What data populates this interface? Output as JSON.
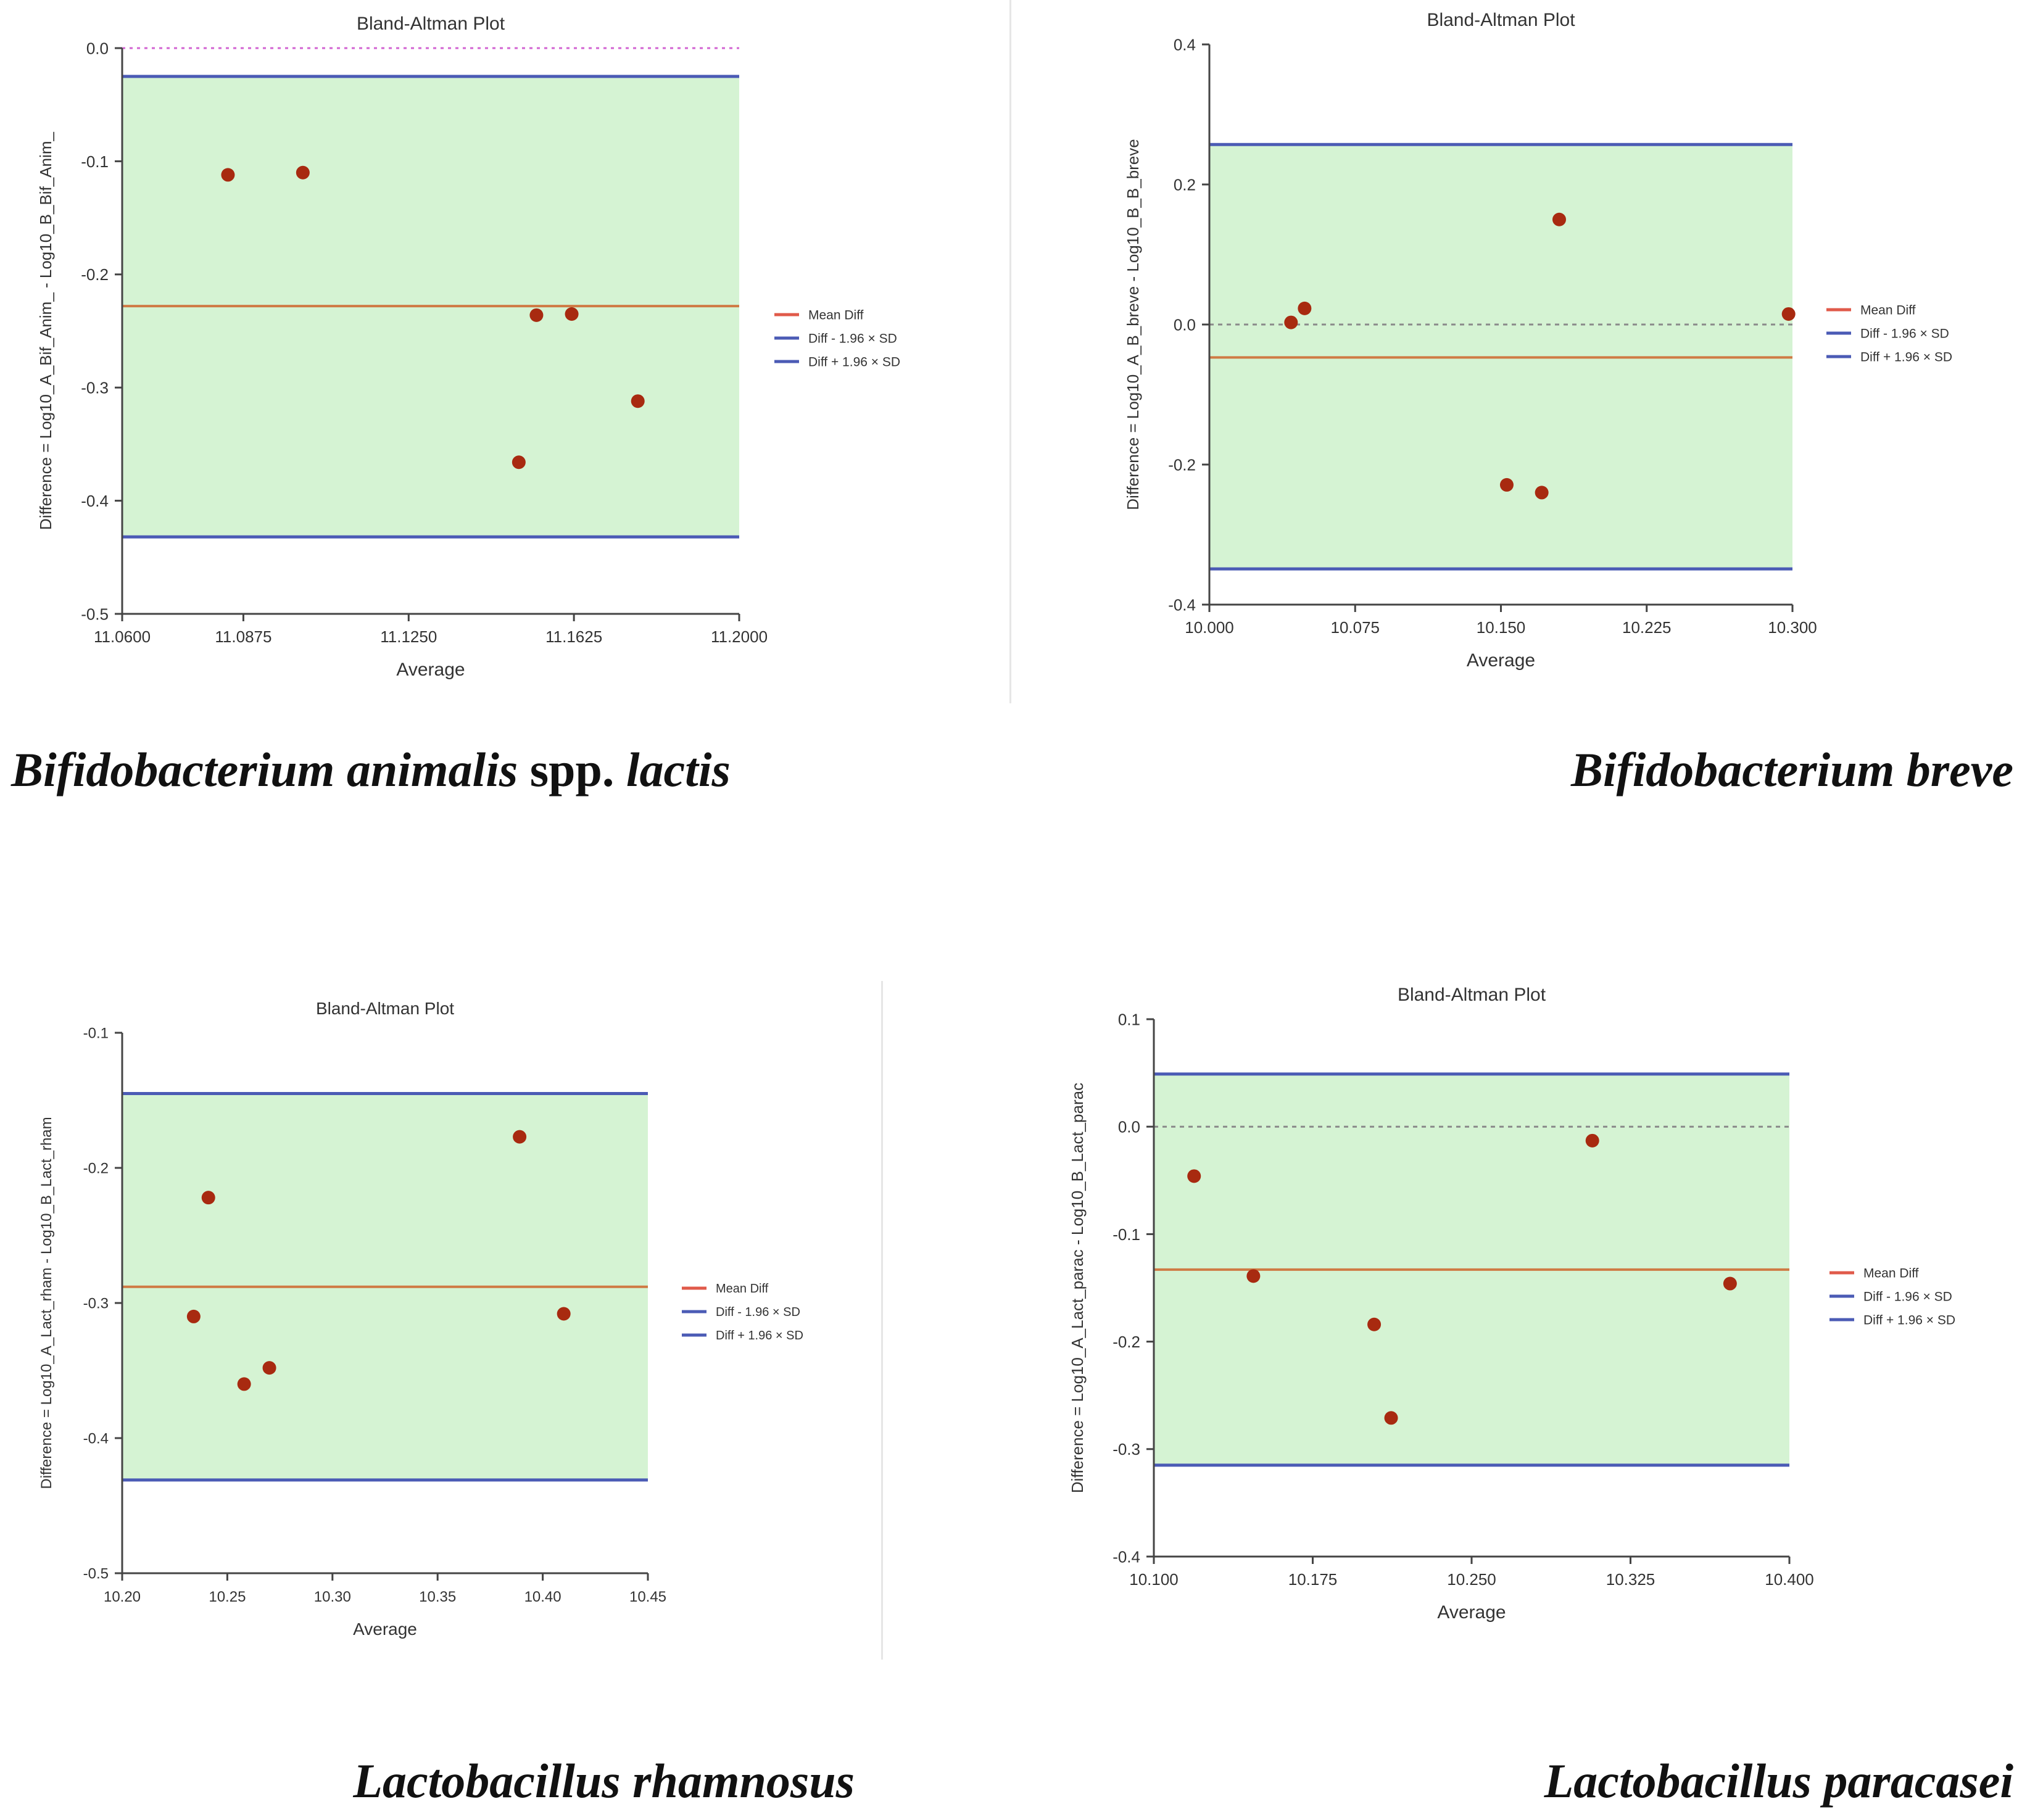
{
  "chart_data": [
    {
      "type": "scatter",
      "title": "Bland-Altman Plot",
      "xlabel": "Average",
      "ylabel": "Difference = Log10_A_Bif_Anim_ - Log10_B_Bif_Anim_",
      "xlim": [
        11.06,
        11.2
      ],
      "ylim": [
        -0.5,
        0.0
      ],
      "xticks": [
        "11.0600",
        "11.0875",
        "11.1250",
        "11.1625",
        "11.2000"
      ],
      "xtick_values": [
        11.06,
        11.0875,
        11.125,
        11.1625,
        11.2
      ],
      "yticks": [
        "0.0",
        "-0.1",
        "-0.2",
        "-0.3",
        "-0.4",
        "-0.5"
      ],
      "ytick_values": [
        0.0,
        -0.1,
        -0.2,
        -0.3,
        -0.4,
        -0.5
      ],
      "zero_line": "pink",
      "mean_diff": -0.228,
      "lower_loa": -0.432,
      "upper_loa": -0.025,
      "points": [
        [
          11.084,
          -0.112
        ],
        [
          11.101,
          -0.11
        ],
        [
          11.154,
          -0.236
        ],
        [
          11.162,
          -0.235
        ],
        [
          11.15,
          -0.366
        ],
        [
          11.177,
          -0.312
        ]
      ],
      "legend": [
        "Mean Diff",
        "Diff - 1.96 × SD",
        "Diff + 1.96 × SD"
      ],
      "legend_position": "right",
      "caption_italic": "Bifidobacterium animalis",
      "caption_normal": " spp. ",
      "caption_italic2": "lactis"
    },
    {
      "type": "scatter",
      "title": "Bland-Altman Plot",
      "xlabel": "Average",
      "ylabel": "Difference = Log10_A_B_breve - Log10_B_B_breve",
      "xlim": [
        10.0,
        10.3
      ],
      "ylim": [
        -0.4,
        0.4
      ],
      "xticks": [
        "10.000",
        "10.075",
        "10.150",
        "10.225",
        "10.300"
      ],
      "xtick_values": [
        10.0,
        10.075,
        10.15,
        10.225,
        10.3
      ],
      "yticks": [
        "0.4",
        "0.2",
        "0.0",
        "-0.2",
        "-0.4"
      ],
      "ytick_values": [
        0.4,
        0.2,
        0.0,
        -0.2,
        -0.4
      ],
      "zero_line": "gray",
      "mean_diff": -0.047,
      "lower_loa": -0.349,
      "upper_loa": 0.257,
      "points": [
        [
          10.042,
          0.003
        ],
        [
          10.049,
          0.023
        ],
        [
          10.153,
          -0.229
        ],
        [
          10.171,
          -0.24
        ],
        [
          10.18,
          0.15
        ],
        [
          10.298,
          0.015
        ]
      ],
      "legend": [
        "Mean Diff",
        "Diff - 1.96 × SD",
        "Diff + 1.96 × SD"
      ],
      "legend_position": "right",
      "caption_italic": "Bifidobacterium breve",
      "caption_normal": "",
      "caption_italic2": ""
    },
    {
      "type": "scatter",
      "title": "Bland-Altman Plot",
      "xlabel": "Average",
      "ylabel": "Difference = Log10_A_Lact_rham - Log10_B_Lact_rham",
      "xlim": [
        10.2,
        10.45
      ],
      "ylim": [
        -0.5,
        -0.1
      ],
      "xticks": [
        "10.20",
        "10.25",
        "10.30",
        "10.35",
        "10.40",
        "10.45"
      ],
      "xtick_values": [
        10.2,
        10.25,
        10.3,
        10.35,
        10.4,
        10.45
      ],
      "yticks": [
        "-0.1",
        "-0.2",
        "-0.3",
        "-0.4",
        "-0.5"
      ],
      "ytick_values": [
        -0.1,
        -0.2,
        -0.3,
        -0.4,
        -0.5
      ],
      "zero_line": "none",
      "mean_diff": -0.288,
      "lower_loa": -0.431,
      "upper_loa": -0.145,
      "points": [
        [
          10.234,
          -0.31
        ],
        [
          10.241,
          -0.222
        ],
        [
          10.258,
          -0.36
        ],
        [
          10.27,
          -0.348
        ],
        [
          10.389,
          -0.177
        ],
        [
          10.41,
          -0.308
        ]
      ],
      "legend": [
        "Mean Diff",
        "Diff - 1.96 × SD",
        "Diff + 1.96 × SD"
      ],
      "legend_position": "right",
      "caption_italic": "Lactobacillus rhamnosus",
      "caption_normal": "",
      "caption_italic2": ""
    },
    {
      "type": "scatter",
      "title": "Bland-Altman Plot",
      "xlabel": "Average",
      "ylabel": "Difference = Log10_A_Lact_parac - Log10_B_Lact_parac",
      "xlim": [
        10.1,
        10.4
      ],
      "ylim": [
        -0.4,
        0.1
      ],
      "xticks": [
        "10.100",
        "10.175",
        "10.250",
        "10.325",
        "10.400"
      ],
      "xtick_values": [
        10.1,
        10.175,
        10.25,
        10.325,
        10.4
      ],
      "yticks": [
        "0.1",
        "0.0",
        "-0.1",
        "-0.2",
        "-0.3",
        "-0.4"
      ],
      "ytick_values": [
        0.1,
        0.0,
        -0.1,
        -0.2,
        -0.3,
        -0.4
      ],
      "zero_line": "gray",
      "mean_diff": -0.133,
      "lower_loa": -0.315,
      "upper_loa": 0.049,
      "points": [
        [
          10.119,
          -0.046
        ],
        [
          10.147,
          -0.139
        ],
        [
          10.204,
          -0.184
        ],
        [
          10.212,
          -0.271
        ],
        [
          10.307,
          -0.013
        ],
        [
          10.372,
          -0.146
        ]
      ],
      "legend": [
        "Mean Diff",
        "Diff - 1.96 × SD",
        "Diff + 1.96 × SD"
      ],
      "legend_position": "right",
      "caption_italic": "Lactobacillus paracasei",
      "caption_normal": "",
      "caption_italic2": ""
    }
  ]
}
